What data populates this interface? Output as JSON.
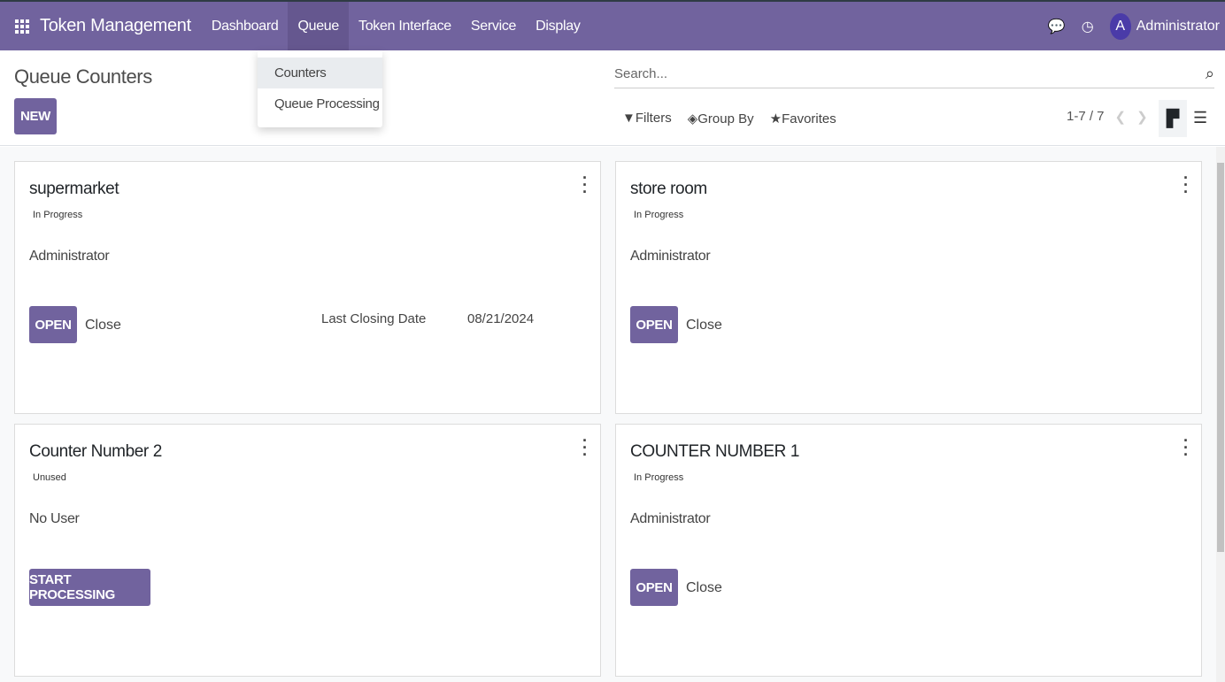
{
  "navbar": {
    "app_title": "Token Management",
    "menus": [
      "Dashboard",
      "Queue",
      "Token Interface",
      "Service",
      "Display"
    ],
    "active_menu": "Queue",
    "user": "Administrator",
    "avatar_letter": "A",
    "brand_color": "#71639e"
  },
  "dropdown": {
    "items": [
      "Counters",
      "Queue Processing"
    ]
  },
  "control_panel": {
    "title": "Queue Counters",
    "new_label": "NEW",
    "search_placeholder": "Search...",
    "filters": "Filters",
    "group_by": "Group By",
    "favorites": "Favorites",
    "pager": "1-7 / 7"
  },
  "cards": [
    {
      "name": "supermarket",
      "status": "In Progress",
      "user": "Administrator",
      "primary": "OPEN",
      "secondary": "Close",
      "last_closing_label": "Last Closing Date",
      "last_closing_value": "08/21/2024"
    },
    {
      "name": "store room",
      "status": "In Progress",
      "user": "Administrator",
      "primary": "OPEN",
      "secondary": "Close"
    },
    {
      "name": "Counter Number 2",
      "status": "Unused",
      "user": "No User",
      "primary": "START PROCESSING"
    },
    {
      "name": "COUNTER NUMBER 1",
      "status": "In Progress",
      "user": "Administrator",
      "primary": "OPEN",
      "secondary": "Close"
    }
  ]
}
